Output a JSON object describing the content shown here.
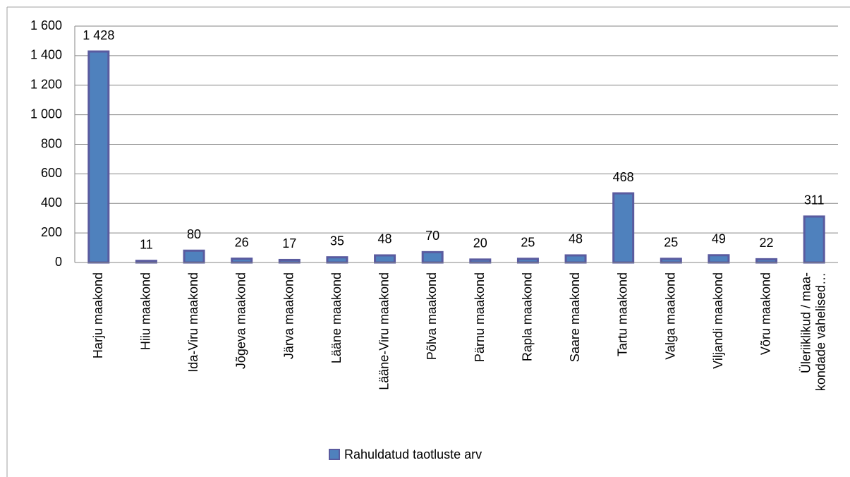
{
  "chart_data": {
    "type": "bar",
    "categories": [
      "Harju maakond",
      "Hiiu maakond",
      "Ida-Viru maakond",
      "Jõgeva maakond",
      "Järva maakond",
      "Lääne maakond",
      "Lääne-Viru maakond",
      "Põlva maakond",
      "Pärnu maakond",
      "Rapla maakond",
      "Saare maakond",
      "Tartu maakond",
      "Valga maakond",
      "Viljandi maakond",
      "Võru maakond",
      "Üleriiklikud / maa-\nkondade vahelised…"
    ],
    "series": [
      {
        "name": "Rahuldatud taotluste arv",
        "color": "#4f81bd",
        "values": [
          1428,
          11,
          80,
          26,
          17,
          35,
          48,
          70,
          20,
          25,
          48,
          468,
          25,
          49,
          22,
          311
        ],
        "value_labels": [
          "1 428",
          "11",
          "80",
          "26",
          "17",
          "35",
          "48",
          "70",
          "20",
          "25",
          "48",
          "468",
          "25",
          "49",
          "22",
          "311"
        ]
      }
    ],
    "ylim": [
      0,
      1600
    ],
    "yticks": [
      0,
      200,
      400,
      600,
      800,
      {
        "value": 1000,
        "label": "1 000"
      },
      {
        "value": 1200,
        "label": "1 200"
      },
      {
        "value": 1400,
        "label": "1 400"
      },
      {
        "value": 1600,
        "label": "1 600"
      }
    ],
    "grid": true,
    "legend": "bottom"
  }
}
